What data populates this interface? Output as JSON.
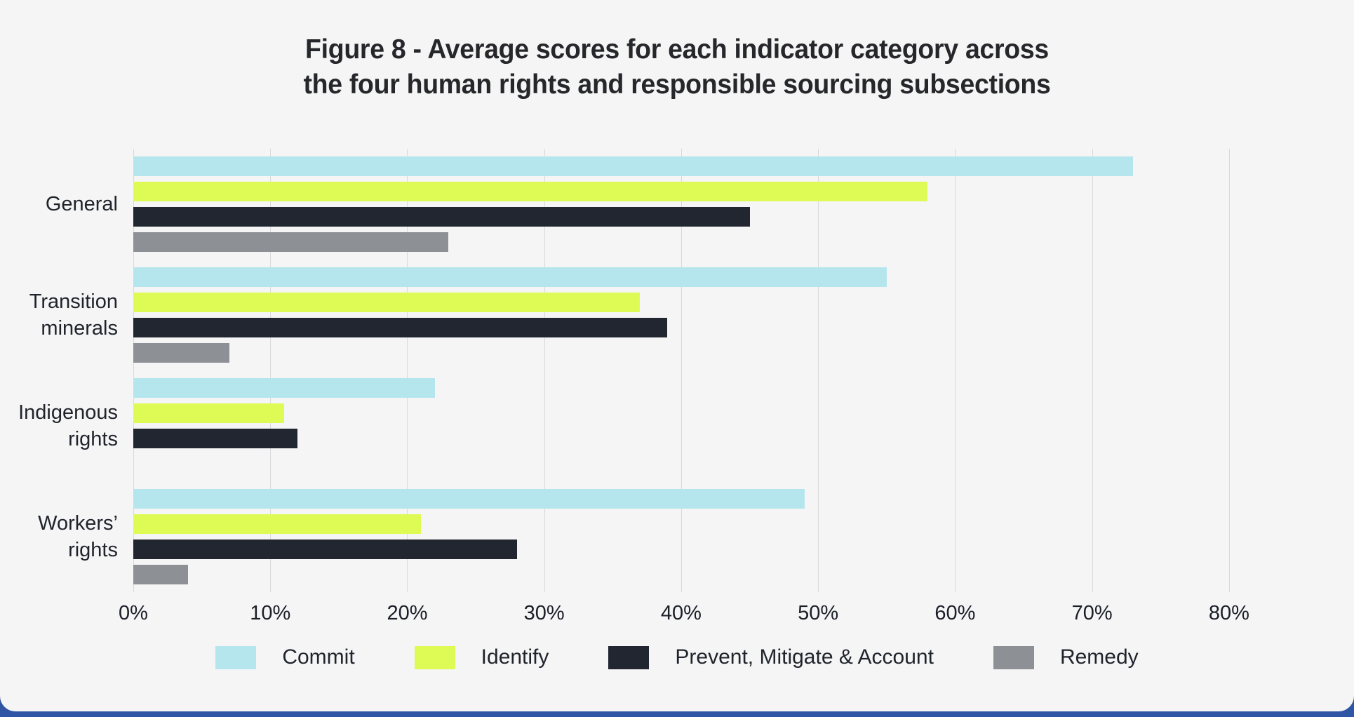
{
  "title": {
    "prefix": "Figure 8 - ",
    "line1_rest": "Average scores for each indicator category across",
    "line2": "the four human rights and responsible sourcing subsections"
  },
  "colors": {
    "card_background": "#f6f5f6",
    "footer_strip": "#2f55a4",
    "gridline": "#d8d9da",
    "title_text": "#26272b",
    "label_text": "#1f232b"
  },
  "chart_data": {
    "type": "bar",
    "orientation": "horizontal",
    "title": "Figure 8 - Average scores for each indicator category across the four human rights and responsible sourcing subsections",
    "categories": [
      "General",
      "Transition minerals",
      "Indigenous rights",
      "Workers’ rights"
    ],
    "series": [
      {
        "name": "Commit",
        "color": "#b5e6ed",
        "values": [
          73,
          55,
          22,
          49
        ]
      },
      {
        "name": "Identify",
        "color": "#defb55",
        "values": [
          58,
          37,
          11,
          21
        ]
      },
      {
        "name": "Prevent, Mitigate & Account",
        "color": "#212631",
        "values": [
          45,
          39,
          12,
          28
        ]
      },
      {
        "name": "Remedy",
        "color": "#8d9195",
        "values": [
          23,
          7,
          0,
          4
        ]
      }
    ],
    "x_ticks": [
      "0%",
      "10%",
      "20%",
      "30%",
      "40%",
      "50%",
      "60%",
      "70%",
      "80%"
    ],
    "xlim": [
      0,
      84
    ],
    "xlabel": "",
    "ylabel": "",
    "grid": true,
    "legend_position": "bottom"
  }
}
